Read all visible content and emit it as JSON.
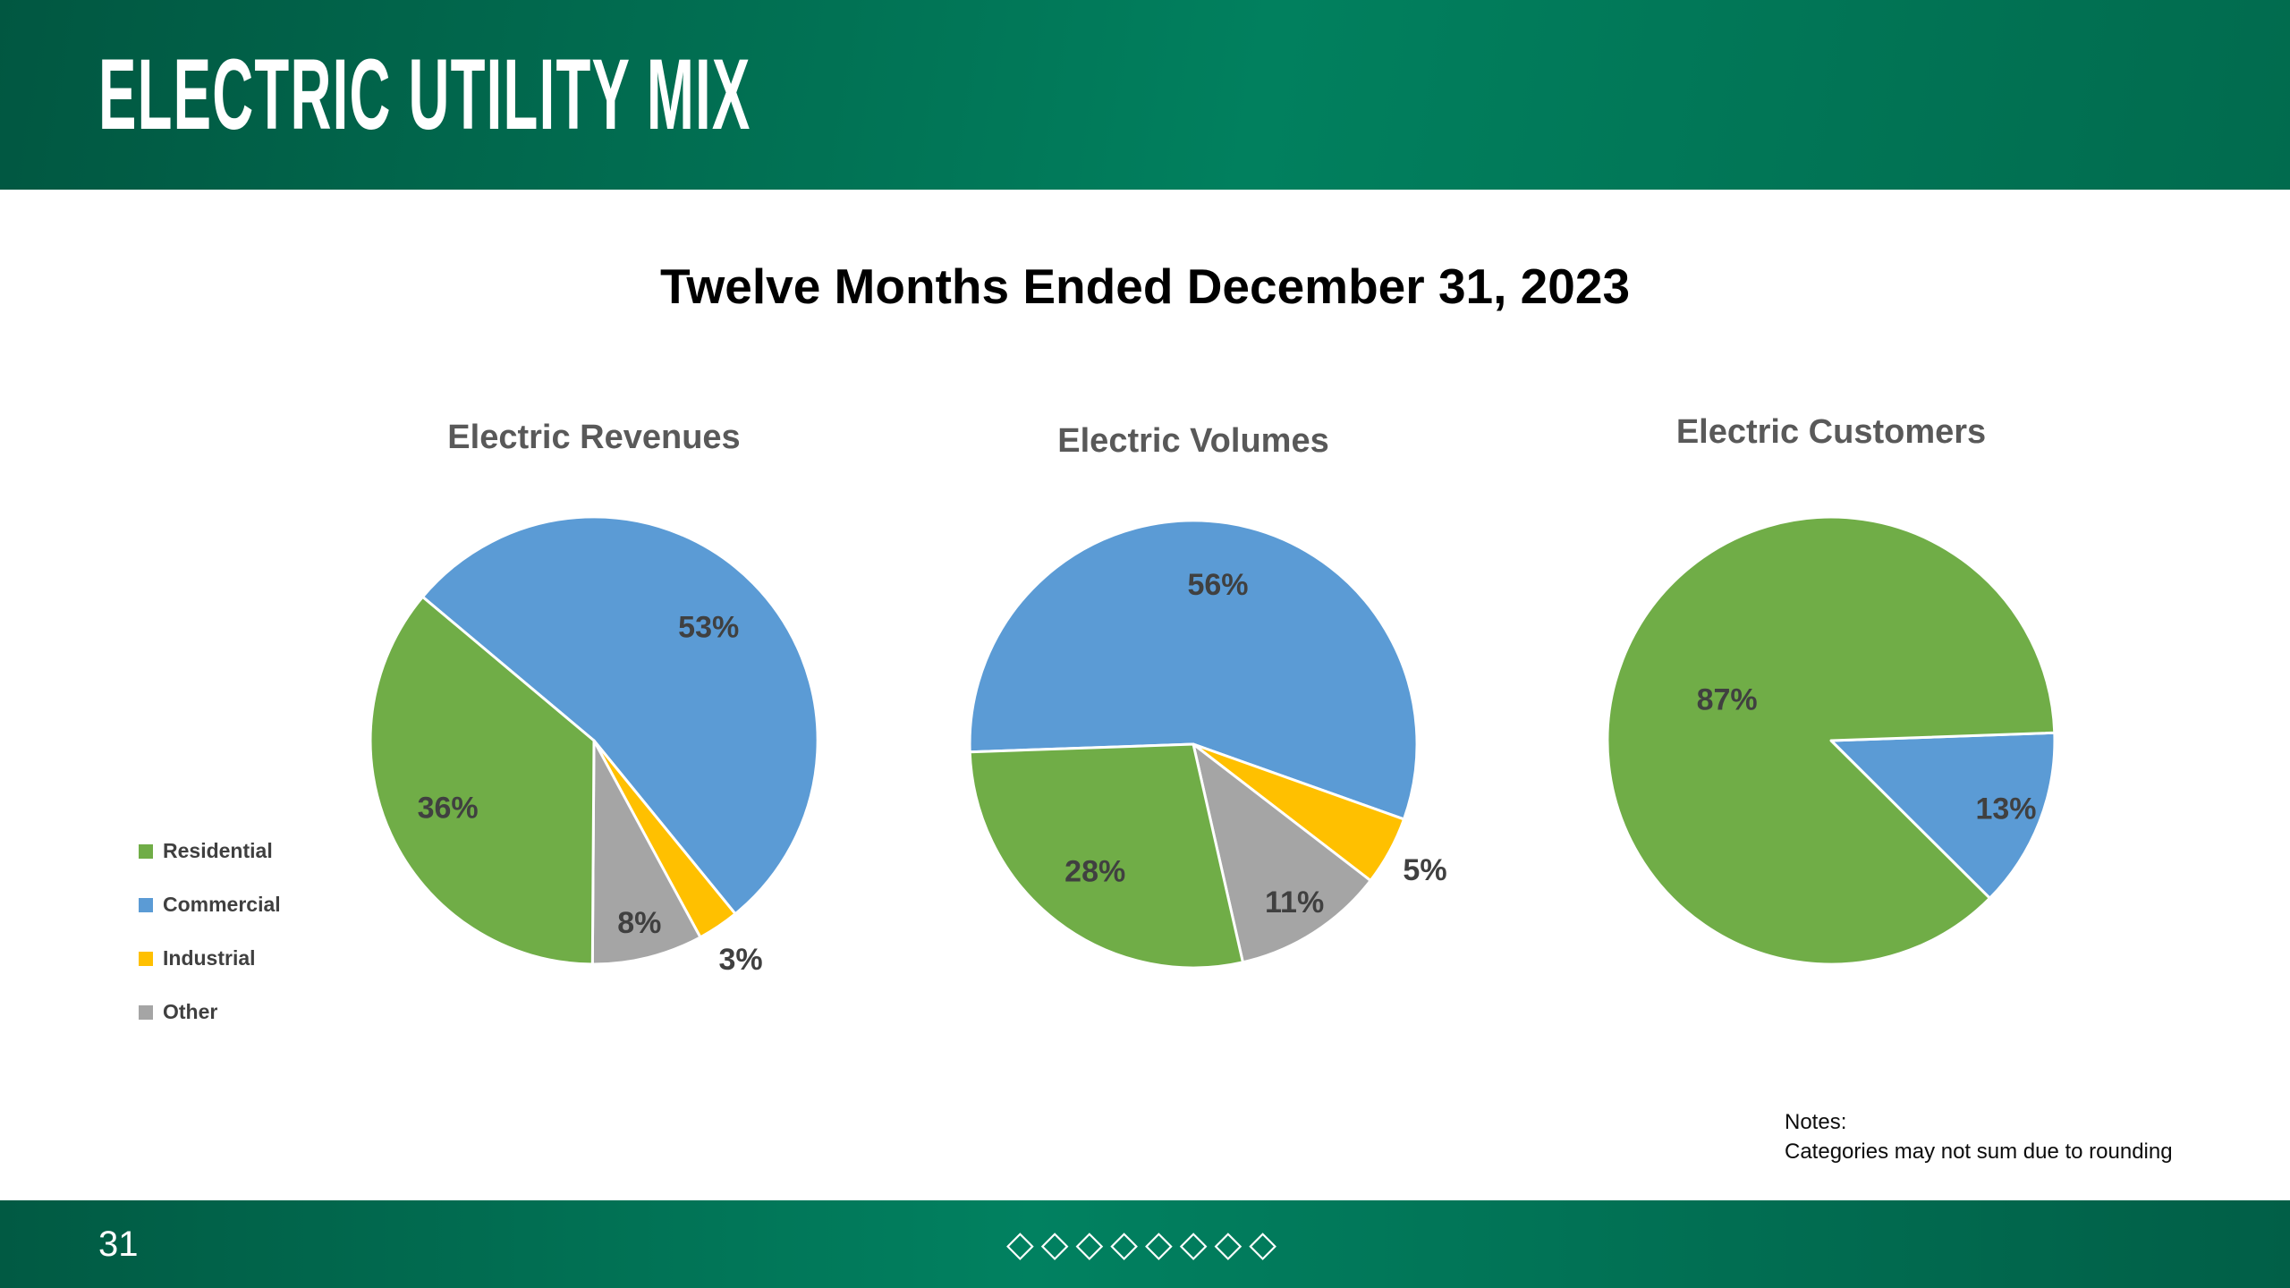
{
  "slide": {
    "title": "ELECTRIC UTILITY MIX",
    "subtitle": "Twelve Months Ended December 31, 2023",
    "page_number": "31",
    "footer_diamonds": "◇◇◇◇◇◇◇◇",
    "notes": {
      "line1": "Notes:",
      "line2": "Categories may not sum due to rounding"
    }
  },
  "colors": {
    "brand_green_dark": "#015741",
    "brand_green": "#01805e",
    "chart_title_gray": "#595959",
    "slice_label_gray": "#404040",
    "residential_green": "#70AD47",
    "commercial_blue": "#5B9BD5",
    "industrial_yellow": "#FFC000",
    "other_gray": "#A5A5A5"
  },
  "legend": {
    "items": [
      {
        "label": "Residential",
        "color": "#70AD47"
      },
      {
        "label": "Commercial",
        "color": "#5B9BD5"
      },
      {
        "label": "Industrial",
        "color": "#FFC000"
      },
      {
        "label": "Other",
        "color": "#A5A5A5"
      }
    ]
  },
  "chart_data": [
    {
      "type": "pie",
      "title": "Electric Revenues",
      "start_angle": 310,
      "legend_position": "left",
      "slices": [
        {
          "label": "Commercial",
          "value": 53,
          "color": "#5B9BD5"
        },
        {
          "label": "Industrial",
          "value": 3,
          "color": "#FFC000"
        },
        {
          "label": "Other",
          "value": 8,
          "color": "#A5A5A5"
        },
        {
          "label": "Residential",
          "value": 36,
          "color": "#70AD47"
        }
      ]
    },
    {
      "type": "pie",
      "title": "Electric Volumes",
      "start_angle": 268,
      "slices": [
        {
          "label": "Commercial",
          "value": 56,
          "color": "#5B9BD5"
        },
        {
          "label": "Industrial",
          "value": 5,
          "color": "#FFC000"
        },
        {
          "label": "Other",
          "value": 11,
          "color": "#A5A5A5"
        },
        {
          "label": "Residential",
          "value": 28,
          "color": "#70AD47"
        }
      ]
    },
    {
      "type": "pie",
      "title": "Electric Customers",
      "start_angle": 88,
      "slices": [
        {
          "label": "Commercial",
          "value": 13,
          "color": "#5B9BD5"
        },
        {
          "label": "Residential",
          "value": 87,
          "color": "#70AD47"
        }
      ]
    }
  ]
}
